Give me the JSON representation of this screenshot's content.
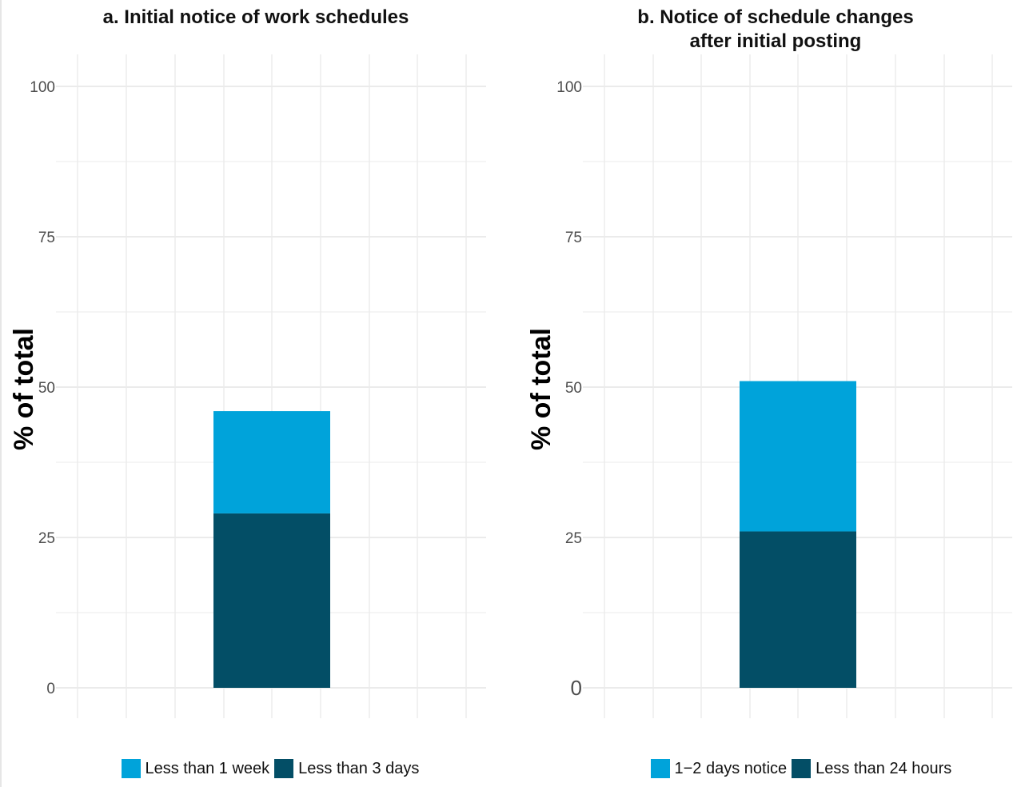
{
  "colors": {
    "light": "#00a3da",
    "dark": "#034e66",
    "grid": "#ebebeb",
    "tick_text": "#4d4d4d"
  },
  "chart_data": [
    {
      "type": "bar",
      "stacked": true,
      "title": "a.  Initial notice of work schedules",
      "ylabel": "% of total",
      "xlabel": "",
      "ylim": [
        0,
        100
      ],
      "yticks": [
        "0",
        "25",
        "50",
        "75",
        "100"
      ],
      "grid": true,
      "legend_position": "bottom",
      "series": [
        {
          "name": "Less than 3 days",
          "values": [
            29
          ],
          "color": "#034e66"
        },
        {
          "name": "Less than 1 week",
          "values": [
            17
          ],
          "color": "#00a3da"
        }
      ],
      "legend": [
        "Less than 1 week",
        "Less than 3 days"
      ]
    },
    {
      "type": "bar",
      "stacked": true,
      "title": "b.  Notice of schedule changes after initial posting",
      "title_lines": [
        "b.  Notice of schedule changes",
        "after initial posting"
      ],
      "ylabel": "% of total",
      "xlabel": "",
      "ylim": [
        0,
        100
      ],
      "yticks": [
        "0",
        "25",
        "50",
        "75",
        "100"
      ],
      "grid": true,
      "legend_position": "bottom",
      "series": [
        {
          "name": "Less than 24 hours",
          "values": [
            26
          ],
          "color": "#034e66"
        },
        {
          "name": "1−2 days notice",
          "values": [
            25
          ],
          "color": "#00a3da"
        }
      ],
      "legend": [
        "1−2 days notice",
        "Less than 24 hours"
      ]
    }
  ]
}
